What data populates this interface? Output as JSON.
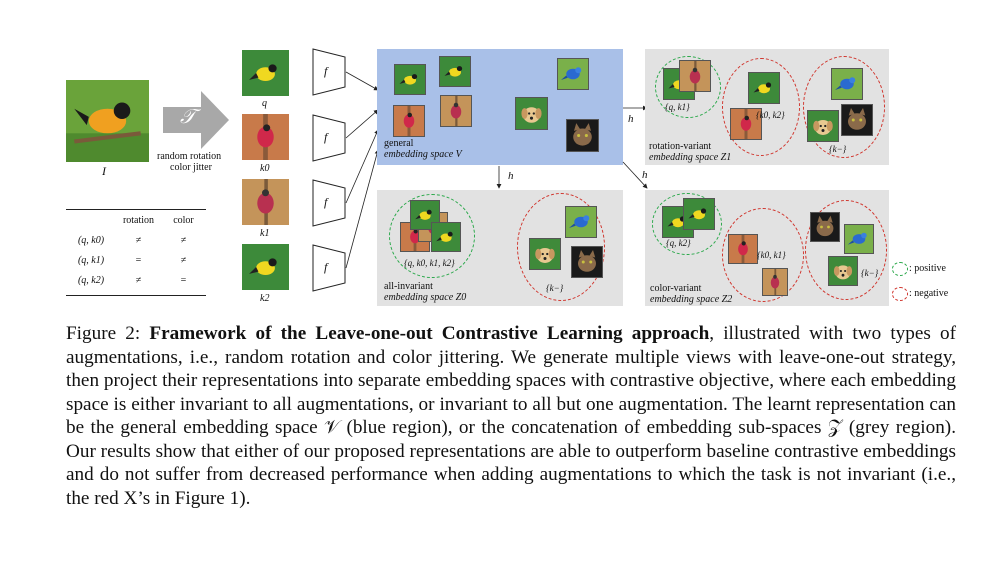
{
  "figure": {
    "input_label": "I",
    "transform_symbol": "𝒯",
    "transform_line1": "random rotation",
    "transform_line2": "color jitter",
    "view_labels": [
      "q",
      "k0",
      "k1",
      "k2"
    ],
    "encoder_label": "f",
    "projection_label": "h",
    "aug_table": {
      "headers": [
        "",
        "rotation",
        "color"
      ],
      "rows": [
        [
          "(q, k0)",
          "≠",
          "≠"
        ],
        [
          "(q, k1)",
          "=",
          "≠"
        ],
        [
          "(q, k2)",
          "≠",
          "="
        ]
      ]
    },
    "general_space_line1": "general",
    "general_space_line2": "embedding space V",
    "rotation_space_line1": "rotation-variant",
    "rotation_space_line2": "embedding space Z1",
    "invariant_space_line1": "all-invariant",
    "invariant_space_line2": "embedding space Z0",
    "color_space_line1": "color-variant",
    "color_space_line2": "embedding space Z2",
    "set_rot_pos": "{q, k1}",
    "set_rot_neg": "{k0, k2}",
    "set_k_minus": "{k−}",
    "set_all_pos": "{q, k0, k1, k2}",
    "set_color_pos": "{q, k2}",
    "set_color_neg": "{k0, k1}",
    "legend_positive": ": positive",
    "legend_negative": ": negative"
  },
  "caption": {
    "label": "Figure 2:",
    "title": "Framework of the Leave-one-out Contrastive Learning approach",
    "body": ", illustrated with two types of augmentations, i.e., random rotation and color jittering. We generate multiple views with leave-one-out strategy, then project their representations into separate embedding spaces with contrastive objective, where each embedding space is either invariant to all augmentations, or invariant to all but one augmentation. The learnt representation can be the general embedding space 𝒱 (blue region), or the concatenation of embedding sub-spaces 𝒵 (grey region). Our results show that either of our proposed representations are able to outperform baseline contrastive embeddings and do not suffer from decreased performance when adding augmentations to which the task is not invariant (i.e., the red X’s in Figure 1)."
  }
}
